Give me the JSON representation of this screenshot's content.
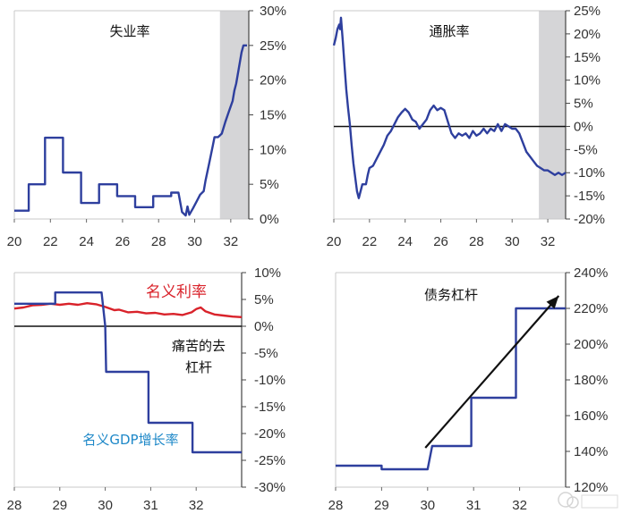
{
  "chart_data": [
    {
      "type": "line",
      "panel": "top-left",
      "title": "失业率",
      "x_ticks": [
        "20",
        "22",
        "24",
        "26",
        "28",
        "30",
        "32"
      ],
      "y_ticks": [
        "30%",
        "25%",
        "20%",
        "15%",
        "10%",
        "5%",
        "0%"
      ],
      "xlim": [
        20,
        33
      ],
      "ylim": [
        0,
        30
      ],
      "shaded_region": [
        31.4,
        33
      ],
      "series": [
        {
          "color": "#2e3f9e",
          "points": [
            [
              20.0,
              1.2
            ],
            [
              20.8,
              1.2
            ],
            [
              20.8,
              5.0
            ],
            [
              21.7,
              5.0
            ],
            [
              21.7,
              11.7
            ],
            [
              22.7,
              11.7
            ],
            [
              22.7,
              6.7
            ],
            [
              23.7,
              6.7
            ],
            [
              23.7,
              2.3
            ],
            [
              24.7,
              2.3
            ],
            [
              24.7,
              5.0
            ],
            [
              25.7,
              5.0
            ],
            [
              25.7,
              3.3
            ],
            [
              26.7,
              3.3
            ],
            [
              26.7,
              1.7
            ],
            [
              27.7,
              1.7
            ],
            [
              27.7,
              3.3
            ],
            [
              28.7,
              3.3
            ],
            [
              28.7,
              3.8
            ],
            [
              29.1,
              3.8
            ],
            [
              29.3,
              1.0
            ],
            [
              29.5,
              0.5
            ],
            [
              29.6,
              1.8
            ],
            [
              29.7,
              0.6
            ],
            [
              29.9,
              1.5
            ],
            [
              30.1,
              2.5
            ],
            [
              30.3,
              3.5
            ],
            [
              30.5,
              4.0
            ],
            [
              30.6,
              5.5
            ],
            [
              30.8,
              8.0
            ],
            [
              31.0,
              10.5
            ],
            [
              31.1,
              11.8
            ],
            [
              31.3,
              11.8
            ],
            [
              31.5,
              12.3
            ],
            [
              31.7,
              14.0
            ],
            [
              31.9,
              15.5
            ],
            [
              32.1,
              17.0
            ],
            [
              32.2,
              18.5
            ],
            [
              32.3,
              19.5
            ],
            [
              32.4,
              21.0
            ],
            [
              32.5,
              22.5
            ],
            [
              32.6,
              24.0
            ],
            [
              32.7,
              25.0
            ],
            [
              32.9,
              25.0
            ]
          ]
        }
      ]
    },
    {
      "type": "line",
      "panel": "top-right",
      "title": "通胀率",
      "x_ticks": [
        "20",
        "22",
        "24",
        "26",
        "28",
        "30",
        "32"
      ],
      "y_ticks": [
        "25%",
        "20%",
        "15%",
        "10%",
        "5%",
        "0%",
        "-5%",
        "-10%",
        "-15%",
        "-20%"
      ],
      "xlim": [
        20,
        33
      ],
      "ylim": [
        -20,
        25
      ],
      "shaded_region": [
        31.5,
        33
      ],
      "series": [
        {
          "color": "#2e3f9e",
          "points": [
            [
              20.0,
              17.5
            ],
            [
              20.1,
              19.0
            ],
            [
              20.2,
              21.0
            ],
            [
              20.3,
              22.0
            ],
            [
              20.35,
              21.0
            ],
            [
              20.4,
              23.5
            ],
            [
              20.5,
              18.5
            ],
            [
              20.6,
              13.0
            ],
            [
              20.7,
              8.0
            ],
            [
              20.8,
              4.0
            ],
            [
              20.9,
              0.5
            ],
            [
              21.0,
              -4.0
            ],
            [
              21.1,
              -8.0
            ],
            [
              21.2,
              -11.0
            ],
            [
              21.3,
              -14.0
            ],
            [
              21.4,
              -15.5
            ],
            [
              21.5,
              -14.0
            ],
            [
              21.6,
              -12.5
            ],
            [
              21.8,
              -12.5
            ],
            [
              21.9,
              -10.5
            ],
            [
              22.0,
              -9.0
            ],
            [
              22.2,
              -8.5
            ],
            [
              22.4,
              -7.0
            ],
            [
              22.6,
              -5.5
            ],
            [
              22.8,
              -4.0
            ],
            [
              23.0,
              -2.0
            ],
            [
              23.2,
              -1.0
            ],
            [
              23.4,
              0.5
            ],
            [
              23.6,
              2.0
            ],
            [
              23.8,
              3.0
            ],
            [
              24.0,
              3.8
            ],
            [
              24.2,
              3.0
            ],
            [
              24.4,
              1.5
            ],
            [
              24.6,
              1.0
            ],
            [
              24.8,
              -0.5
            ],
            [
              25.0,
              0.5
            ],
            [
              25.2,
              1.5
            ],
            [
              25.4,
              3.5
            ],
            [
              25.6,
              4.5
            ],
            [
              25.8,
              3.5
            ],
            [
              26.0,
              4.0
            ],
            [
              26.2,
              3.5
            ],
            [
              26.4,
              1.0
            ],
            [
              26.6,
              -1.5
            ],
            [
              26.8,
              -2.5
            ],
            [
              27.0,
              -1.5
            ],
            [
              27.2,
              -2.0
            ],
            [
              27.4,
              -1.5
            ],
            [
              27.6,
              -2.5
            ],
            [
              27.8,
              -1.0
            ],
            [
              28.0,
              -2.0
            ],
            [
              28.2,
              -1.5
            ],
            [
              28.4,
              -0.5
            ],
            [
              28.6,
              -1.5
            ],
            [
              28.8,
              -0.5
            ],
            [
              29.0,
              -1.0
            ],
            [
              29.2,
              0.5
            ],
            [
              29.4,
              -1.0
            ],
            [
              29.6,
              0.5
            ],
            [
              29.8,
              0.0
            ],
            [
              30.0,
              -0.5
            ],
            [
              30.2,
              -0.5
            ],
            [
              30.4,
              -1.5
            ],
            [
              30.6,
              -3.5
            ],
            [
              30.8,
              -5.5
            ],
            [
              31.0,
              -6.5
            ],
            [
              31.2,
              -7.5
            ],
            [
              31.4,
              -8.5
            ],
            [
              31.6,
              -9.0
            ],
            [
              31.8,
              -9.5
            ],
            [
              32.0,
              -9.5
            ],
            [
              32.2,
              -10.0
            ],
            [
              32.4,
              -10.5
            ],
            [
              32.6,
              -10.0
            ],
            [
              32.8,
              -10.5
            ],
            [
              33.0,
              -10.0
            ]
          ]
        }
      ]
    },
    {
      "type": "line",
      "panel": "bottom-left",
      "annotations": [
        "名义利率",
        "痛苦的去",
        "杠杆",
        "名义GDP增长率"
      ],
      "x_ticks": [
        "28",
        "29",
        "30",
        "31",
        "32"
      ],
      "y_ticks": [
        "10%",
        "5%",
        "0%",
        "-5%",
        "-10%",
        "-15%",
        "-20%",
        "-25%",
        "-30%"
      ],
      "xlim": [
        28,
        33
      ],
      "ylim": [
        -30,
        10
      ],
      "series": [
        {
          "label": "名义利率",
          "color": "#d9222a",
          "points": [
            [
              28.0,
              3.3
            ],
            [
              28.2,
              3.5
            ],
            [
              28.4,
              3.9
            ],
            [
              28.6,
              4.0
            ],
            [
              28.8,
              4.2
            ],
            [
              29.0,
              4.0
            ],
            [
              29.2,
              4.2
            ],
            [
              29.4,
              4.0
            ],
            [
              29.6,
              4.3
            ],
            [
              29.8,
              4.1
            ],
            [
              30.0,
              3.6
            ],
            [
              30.2,
              3.0
            ],
            [
              30.3,
              3.1
            ],
            [
              30.5,
              2.6
            ],
            [
              30.7,
              2.7
            ],
            [
              30.9,
              2.4
            ],
            [
              31.1,
              2.5
            ],
            [
              31.3,
              2.2
            ],
            [
              31.5,
              2.3
            ],
            [
              31.7,
              2.1
            ],
            [
              31.9,
              2.6
            ],
            [
              32.0,
              3.2
            ],
            [
              32.1,
              3.5
            ],
            [
              32.2,
              2.8
            ],
            [
              32.4,
              2.2
            ],
            [
              32.6,
              2.0
            ],
            [
              32.8,
              1.8
            ],
            [
              33.0,
              1.7
            ]
          ]
        },
        {
          "label": "名义GDP增长率",
          "color": "#2e3f9e",
          "points": [
            [
              28.0,
              4.2
            ],
            [
              28.9,
              4.2
            ],
            [
              28.9,
              6.3
            ],
            [
              29.92,
              6.3
            ],
            [
              30.0,
              0.0
            ],
            [
              30.02,
              -8.5
            ],
            [
              30.95,
              -8.5
            ],
            [
              30.95,
              -18.0
            ],
            [
              31.92,
              -18.0
            ],
            [
              31.92,
              -23.5
            ],
            [
              33.0,
              -23.5
            ]
          ]
        }
      ]
    },
    {
      "type": "line",
      "panel": "bottom-right",
      "title": "债务杠杆",
      "x_ticks": [
        "28",
        "29",
        "30",
        "31",
        "32"
      ],
      "y_ticks": [
        "240%",
        "220%",
        "200%",
        "180%",
        "160%",
        "140%",
        "120%"
      ],
      "xlim": [
        28,
        33
      ],
      "ylim": [
        120,
        240
      ],
      "series": [
        {
          "color": "#2e3f9e",
          "points": [
            [
              28.0,
              132
            ],
            [
              29.0,
              132
            ],
            [
              29.0,
              130
            ],
            [
              30.0,
              130
            ],
            [
              30.1,
              143
            ],
            [
              30.95,
              143
            ],
            [
              30.95,
              170
            ],
            [
              31.92,
              170
            ],
            [
              31.92,
              220
            ],
            [
              33.0,
              220
            ]
          ]
        }
      ],
      "arrow": {
        "from": [
          29.95,
          142
        ],
        "to": [
          32.85,
          227
        ]
      }
    }
  ]
}
